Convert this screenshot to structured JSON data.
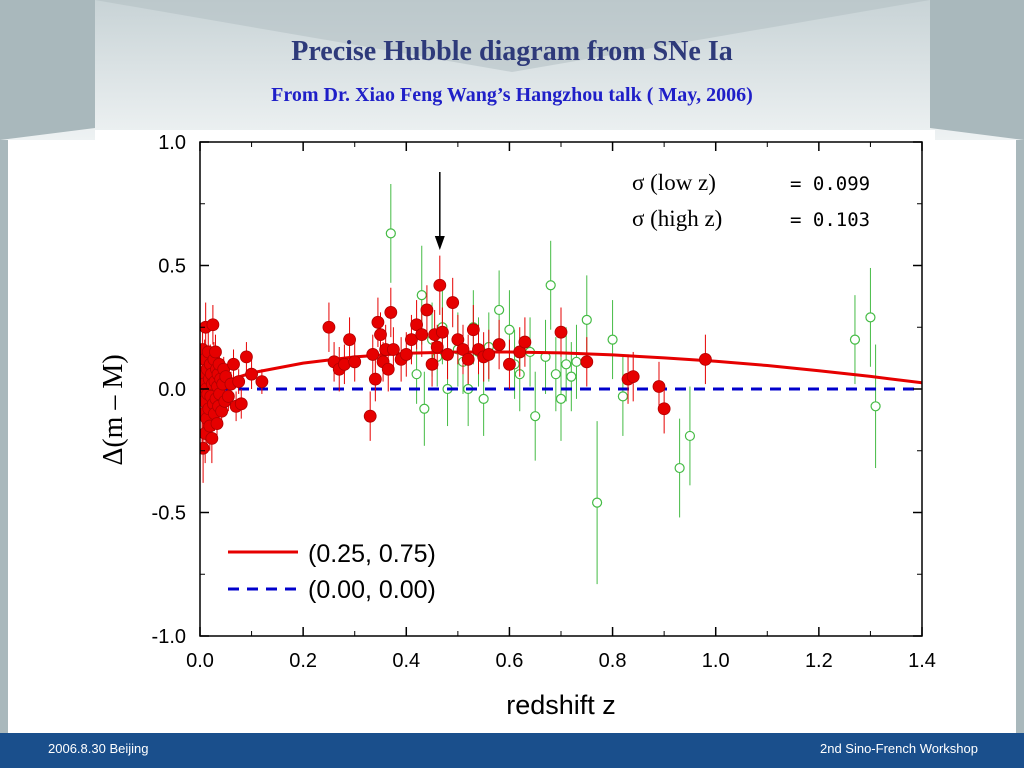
{
  "slide": {
    "title": "Precise Hubble diagram from SNe Ia",
    "subtitle": "From Dr. Xiao Feng Wang’s Hangzhou talk ( May, 2006)",
    "footer_left": "2006.8.30 Beijing",
    "footer_right": "2nd Sino-French Workshop"
  },
  "colors": {
    "title": "#2e3a7a",
    "subtitle": "#1f1fc8",
    "footer_bg": "#1a4f8c",
    "red_series": "#e60000",
    "green_series": "#44bb44",
    "blue_dashed": "#0000cc"
  },
  "chart_data": {
    "type": "scatter",
    "xlabel": "redshift z",
    "ylabel": "Δ(m – M)",
    "xlim": [
      0.0,
      1.4
    ],
    "ylim": [
      -1.0,
      1.0
    ],
    "x_ticks": [
      "0.0",
      "0.2",
      "0.4",
      "0.6",
      "0.8",
      "1.0",
      "1.2",
      "1.4"
    ],
    "y_ticks": [
      "-1.0",
      "-0.5",
      "0.0",
      "0.5",
      "1.0"
    ],
    "annotations": {
      "sigma_low_label": "σ  (low  z)",
      "sigma_low_value": "= 0.099",
      "sigma_high_label": "σ  (high z)",
      "sigma_high_value": "= 0.103"
    },
    "arrow_x": 0.465,
    "legend": [
      {
        "label": "(0.25, 0.75)",
        "style": "solid",
        "color": "#e60000"
      },
      {
        "label": "(0.00, 0.00)",
        "style": "dashed",
        "color": "#0000cc"
      }
    ],
    "lines": [
      {
        "name": "(0.25, 0.75)",
        "x": [
          0.0,
          0.1,
          0.2,
          0.3,
          0.4,
          0.5,
          0.6,
          0.7,
          0.8,
          0.9,
          1.0,
          1.1,
          1.2,
          1.3,
          1.4
        ],
        "y": [
          0.0,
          0.065,
          0.105,
          0.13,
          0.145,
          0.15,
          0.15,
          0.146,
          0.138,
          0.126,
          0.112,
          0.095,
          0.074,
          0.051,
          0.025
        ]
      },
      {
        "name": "(0.00, 0.00)",
        "x": [
          0.0,
          1.4
        ],
        "y": [
          0.0,
          0.0
        ]
      }
    ],
    "series": [
      {
        "kind": "filled-red",
        "points": [
          [
            0.002,
            0.05,
            0.1
          ],
          [
            0.004,
            -0.1,
            0.12
          ],
          [
            0.005,
            0.16,
            0.1
          ],
          [
            0.006,
            -0.24,
            0.14
          ],
          [
            0.007,
            0.02,
            0.09
          ],
          [
            0.008,
            -0.05,
            0.1
          ],
          [
            0.009,
            0.12,
            0.08
          ],
          [
            0.01,
            -0.18,
            0.12
          ],
          [
            0.011,
            0.25,
            0.1
          ],
          [
            0.012,
            0.0,
            0.09
          ],
          [
            0.013,
            -0.12,
            0.1
          ],
          [
            0.014,
            0.08,
            0.08
          ],
          [
            0.015,
            -0.02,
            0.07
          ],
          [
            0.016,
            0.15,
            0.09
          ],
          [
            0.017,
            -0.08,
            0.08
          ],
          [
            0.018,
            0.04,
            0.07
          ],
          [
            0.019,
            -0.15,
            0.1
          ],
          [
            0.02,
            0.1,
            0.08
          ],
          [
            0.021,
            -0.03,
            0.07
          ],
          [
            0.022,
            0.06,
            0.07
          ],
          [
            0.023,
            -0.2,
            0.1
          ],
          [
            0.024,
            0.02,
            0.06
          ],
          [
            0.025,
            0.26,
            0.08
          ],
          [
            0.026,
            -0.06,
            0.06
          ],
          [
            0.027,
            0.12,
            0.07
          ],
          [
            0.028,
            -0.1,
            0.07
          ],
          [
            0.029,
            0.03,
            0.06
          ],
          [
            0.03,
            0.15,
            0.07
          ],
          [
            0.031,
            -0.04,
            0.06
          ],
          [
            0.032,
            0.08,
            0.06
          ],
          [
            0.033,
            -0.14,
            0.07
          ],
          [
            0.034,
            0.01,
            0.05
          ],
          [
            0.035,
            0.06,
            0.06
          ],
          [
            0.036,
            -0.07,
            0.06
          ],
          [
            0.037,
            0.1,
            0.06
          ],
          [
            0.038,
            -0.02,
            0.05
          ],
          [
            0.04,
            0.04,
            0.05
          ],
          [
            0.042,
            -0.09,
            0.06
          ],
          [
            0.044,
            0.02,
            0.05
          ],
          [
            0.046,
            0.08,
            0.05
          ],
          [
            0.048,
            -0.05,
            0.05
          ],
          [
            0.05,
            0.05,
            0.05
          ],
          [
            0.055,
            -0.03,
            0.06
          ],
          [
            0.06,
            0.02,
            0.05
          ],
          [
            0.065,
            0.1,
            0.06
          ],
          [
            0.07,
            -0.07,
            0.06
          ],
          [
            0.075,
            0.03,
            0.05
          ],
          [
            0.08,
            -0.06,
            0.06
          ],
          [
            0.09,
            0.13,
            0.06
          ],
          [
            0.1,
            0.06,
            0.06
          ],
          [
            0.12,
            0.03,
            0.05
          ],
          [
            0.25,
            0.25,
            0.1
          ],
          [
            0.26,
            0.11,
            0.08
          ],
          [
            0.27,
            0.08,
            0.09
          ],
          [
            0.28,
            0.1,
            0.08
          ],
          [
            0.29,
            0.2,
            0.09
          ],
          [
            0.3,
            0.11,
            0.08
          ],
          [
            0.33,
            -0.11,
            0.1
          ],
          [
            0.335,
            0.14,
            0.08
          ],
          [
            0.34,
            0.04,
            0.09
          ],
          [
            0.345,
            0.27,
            0.1
          ],
          [
            0.35,
            0.22,
            0.09
          ],
          [
            0.355,
            0.11,
            0.08
          ],
          [
            0.36,
            0.16,
            0.1
          ],
          [
            0.365,
            0.08,
            0.09
          ],
          [
            0.37,
            0.31,
            0.1
          ],
          [
            0.375,
            0.16,
            0.09
          ],
          [
            0.39,
            0.12,
            0.09
          ],
          [
            0.4,
            0.14,
            0.09
          ],
          [
            0.41,
            0.2,
            0.1
          ],
          [
            0.42,
            0.26,
            0.1
          ],
          [
            0.43,
            0.22,
            0.09
          ],
          [
            0.44,
            0.32,
            0.1
          ],
          [
            0.45,
            0.1,
            0.09
          ],
          [
            0.455,
            0.22,
            0.1
          ],
          [
            0.46,
            0.17,
            0.09
          ],
          [
            0.465,
            0.42,
            0.12
          ],
          [
            0.47,
            0.23,
            0.1
          ],
          [
            0.48,
            0.14,
            0.1
          ],
          [
            0.49,
            0.35,
            0.1
          ],
          [
            0.5,
            0.2,
            0.1
          ],
          [
            0.51,
            0.16,
            0.1
          ],
          [
            0.52,
            0.12,
            0.1
          ],
          [
            0.53,
            0.24,
            0.1
          ],
          [
            0.54,
            0.16,
            0.1
          ],
          [
            0.55,
            0.13,
            0.1
          ],
          [
            0.56,
            0.14,
            0.1
          ],
          [
            0.58,
            0.18,
            0.1
          ],
          [
            0.6,
            0.1,
            0.1
          ],
          [
            0.62,
            0.15,
            0.1
          ],
          [
            0.63,
            0.19,
            0.1
          ],
          [
            0.7,
            0.23,
            0.1
          ],
          [
            0.75,
            0.11,
            0.1
          ],
          [
            0.83,
            0.04,
            0.1
          ],
          [
            0.84,
            0.05,
            0.1
          ],
          [
            0.89,
            0.01,
            0.1
          ],
          [
            0.9,
            -0.08,
            0.1
          ],
          [
            0.98,
            0.12,
            0.1
          ]
        ]
      },
      {
        "kind": "open-green",
        "points": [
          [
            0.37,
            0.63,
            0.2
          ],
          [
            0.42,
            0.06,
            0.12
          ],
          [
            0.43,
            0.38,
            0.2
          ],
          [
            0.435,
            -0.08,
            0.15
          ],
          [
            0.45,
            0.2,
            0.15
          ],
          [
            0.46,
            0.13,
            0.12
          ],
          [
            0.47,
            0.25,
            0.15
          ],
          [
            0.48,
            0.0,
            0.15
          ],
          [
            0.5,
            0.16,
            0.15
          ],
          [
            0.51,
            0.11,
            0.13
          ],
          [
            0.52,
            0.0,
            0.15
          ],
          [
            0.53,
            0.25,
            0.15
          ],
          [
            0.54,
            0.15,
            0.14
          ],
          [
            0.55,
            -0.04,
            0.15
          ],
          [
            0.56,
            0.17,
            0.14
          ],
          [
            0.58,
            0.32,
            0.16
          ],
          [
            0.6,
            0.24,
            0.16
          ],
          [
            0.61,
            0.1,
            0.14
          ],
          [
            0.62,
            0.06,
            0.15
          ],
          [
            0.64,
            0.15,
            0.14
          ],
          [
            0.65,
            -0.11,
            0.18
          ],
          [
            0.67,
            0.13,
            0.15
          ],
          [
            0.68,
            0.42,
            0.18
          ],
          [
            0.69,
            0.06,
            0.15
          ],
          [
            0.7,
            -0.04,
            0.17
          ],
          [
            0.71,
            0.1,
            0.15
          ],
          [
            0.72,
            0.05,
            0.14
          ],
          [
            0.73,
            0.11,
            0.15
          ],
          [
            0.75,
            0.28,
            0.18
          ],
          [
            0.77,
            -0.46,
            0.33
          ],
          [
            0.8,
            0.2,
            0.16
          ],
          [
            0.82,
            -0.03,
            0.16
          ],
          [
            0.93,
            -0.32,
            0.2
          ],
          [
            0.95,
            -0.19,
            0.2
          ],
          [
            1.27,
            0.2,
            0.18
          ],
          [
            1.3,
            0.29,
            0.2
          ],
          [
            1.31,
            -0.07,
            0.25
          ]
        ]
      }
    ]
  }
}
